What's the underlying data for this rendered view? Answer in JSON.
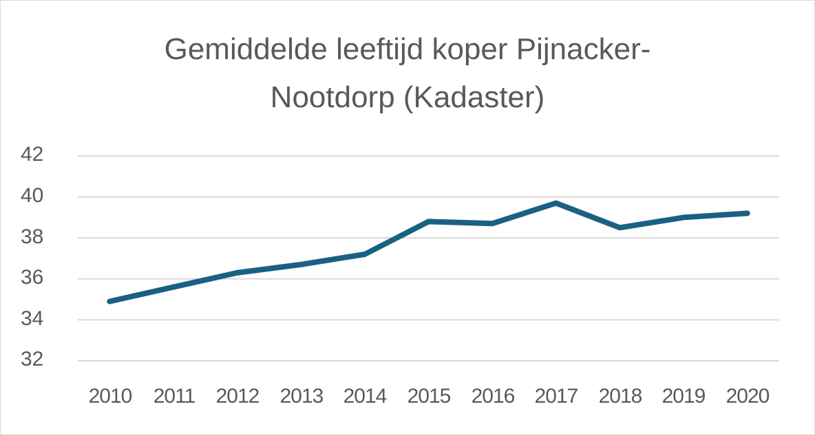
{
  "chart_data": {
    "type": "line",
    "title": "Gemiddelde leeftijd koper Pijnacker-Nootdorp (Kadaster)",
    "title_lines": [
      "Gemiddelde leeftijd koper Pijnacker-",
      "Nootdorp (Kadaster)"
    ],
    "categories": [
      "2010",
      "2011",
      "2012",
      "2013",
      "2014",
      "2015",
      "2016",
      "2017",
      "2018",
      "2019",
      "2020"
    ],
    "series": [
      {
        "name": "Gemiddelde leeftijd koper",
        "values": [
          34.9,
          35.6,
          36.3,
          36.7,
          37.2,
          38.8,
          38.7,
          39.7,
          38.5,
          39.0,
          39.2
        ],
        "color": "#1a6083"
      }
    ],
    "xlabel": "",
    "ylabel": "",
    "ylim": [
      32,
      42
    ],
    "yticks": [
      "42",
      "40",
      "38",
      "36",
      "34",
      "32"
    ],
    "grid": true,
    "legend": "none"
  }
}
